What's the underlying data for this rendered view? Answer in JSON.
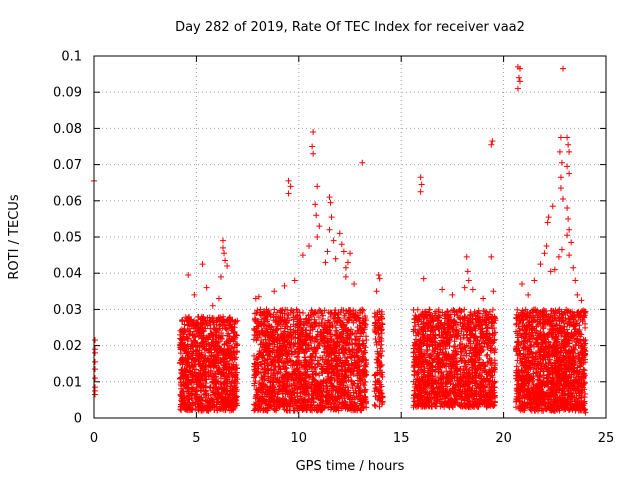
{
  "chart_data": {
    "type": "scatter",
    "title": "Day 282 of 2019, Rate Of TEC Index for receiver vaa2",
    "xlabel": "GPS time / hours",
    "ylabel": "ROTI / TECUs",
    "xlim": [
      0,
      25
    ],
    "ylim": [
      0,
      0.1
    ],
    "x_ticks": [
      0,
      5,
      10,
      15,
      20,
      25
    ],
    "y_ticks": [
      0,
      0.01,
      0.02,
      0.03,
      0.04,
      0.05,
      0.06,
      0.07,
      0.08,
      0.09,
      0.1
    ],
    "x_tick_labels": [
      "0",
      "5",
      "10",
      "15",
      "20",
      "25"
    ],
    "y_tick_labels": [
      "0",
      "0.01",
      "0.02",
      "0.03",
      "0.04",
      "0.05",
      "0.06",
      "0.07",
      "0.08",
      "0.09",
      "0.1"
    ],
    "grid": true,
    "marker": "+",
    "marker_color": "#ff0000",
    "dense_segments": [
      {
        "x": [
          4.2,
          7.0
        ],
        "y": [
          0.002,
          0.028
        ],
        "n": 1100
      },
      {
        "x": [
          7.8,
          13.3
        ],
        "y": [
          0.002,
          0.03
        ],
        "n": 2000
      },
      {
        "x": [
          13.7,
          14.1
        ],
        "y": [
          0.003,
          0.03
        ],
        "n": 120
      },
      {
        "x": [
          15.6,
          19.6
        ],
        "y": [
          0.003,
          0.03
        ],
        "n": 1500
      },
      {
        "x": [
          20.6,
          24.0
        ],
        "y": [
          0.002,
          0.03
        ],
        "n": 1500
      }
    ],
    "points": [
      {
        "x": 0.0,
        "y": 0.0655
      },
      {
        "x": 0.05,
        "y": 0.0215
      },
      {
        "x": 0.05,
        "y": 0.019
      },
      {
        "x": 0.05,
        "y": 0.018
      },
      {
        "x": 0.05,
        "y": 0.0155
      },
      {
        "x": 0.05,
        "y": 0.0135
      },
      {
        "x": 0.05,
        "y": 0.011
      },
      {
        "x": 0.05,
        "y": 0.0085
      },
      {
        "x": 0.05,
        "y": 0.0075
      },
      {
        "x": 0.05,
        "y": 0.0065
      },
      {
        "x": 4.6,
        "y": 0.0395
      },
      {
        "x": 4.9,
        "y": 0.034
      },
      {
        "x": 5.3,
        "y": 0.0425
      },
      {
        "x": 5.5,
        "y": 0.036
      },
      {
        "x": 6.3,
        "y": 0.049
      },
      {
        "x": 6.3,
        "y": 0.047
      },
      {
        "x": 6.35,
        "y": 0.0455
      },
      {
        "x": 6.4,
        "y": 0.0435
      },
      {
        "x": 6.2,
        "y": 0.039
      },
      {
        "x": 6.5,
        "y": 0.042
      },
      {
        "x": 6.1,
        "y": 0.033
      },
      {
        "x": 5.8,
        "y": 0.031
      },
      {
        "x": 7.9,
        "y": 0.033
      },
      {
        "x": 8.05,
        "y": 0.0335
      },
      {
        "x": 8.8,
        "y": 0.035
      },
      {
        "x": 9.5,
        "y": 0.0655
      },
      {
        "x": 9.6,
        "y": 0.064
      },
      {
        "x": 9.5,
        "y": 0.062
      },
      {
        "x": 9.3,
        "y": 0.0365
      },
      {
        "x": 9.8,
        "y": 0.038
      },
      {
        "x": 10.2,
        "y": 0.045
      },
      {
        "x": 10.5,
        "y": 0.0475
      },
      {
        "x": 10.7,
        "y": 0.079
      },
      {
        "x": 10.65,
        "y": 0.075
      },
      {
        "x": 10.7,
        "y": 0.073
      },
      {
        "x": 10.9,
        "y": 0.064
      },
      {
        "x": 10.8,
        "y": 0.059
      },
      {
        "x": 10.85,
        "y": 0.056
      },
      {
        "x": 11.0,
        "y": 0.053
      },
      {
        "x": 10.9,
        "y": 0.05
      },
      {
        "x": 11.3,
        "y": 0.043
      },
      {
        "x": 11.4,
        "y": 0.046
      },
      {
        "x": 11.5,
        "y": 0.061
      },
      {
        "x": 11.55,
        "y": 0.0595
      },
      {
        "x": 11.6,
        "y": 0.0555
      },
      {
        "x": 11.5,
        "y": 0.052
      },
      {
        "x": 11.7,
        "y": 0.049
      },
      {
        "x": 11.8,
        "y": 0.044
      },
      {
        "x": 12.0,
        "y": 0.051
      },
      {
        "x": 12.1,
        "y": 0.048
      },
      {
        "x": 12.2,
        "y": 0.046
      },
      {
        "x": 12.3,
        "y": 0.0415
      },
      {
        "x": 12.4,
        "y": 0.043
      },
      {
        "x": 12.5,
        "y": 0.0455
      },
      {
        "x": 12.7,
        "y": 0.037
      },
      {
        "x": 12.3,
        "y": 0.039
      },
      {
        "x": 13.1,
        "y": 0.0705
      },
      {
        "x": 13.9,
        "y": 0.0395
      },
      {
        "x": 13.95,
        "y": 0.0385
      },
      {
        "x": 13.8,
        "y": 0.035
      },
      {
        "x": 15.95,
        "y": 0.0665
      },
      {
        "x": 16.0,
        "y": 0.0645
      },
      {
        "x": 15.95,
        "y": 0.0625
      },
      {
        "x": 16.1,
        "y": 0.0385
      },
      {
        "x": 17.0,
        "y": 0.0355
      },
      {
        "x": 17.5,
        "y": 0.034
      },
      {
        "x": 18.2,
        "y": 0.0445
      },
      {
        "x": 18.25,
        "y": 0.0405
      },
      {
        "x": 18.3,
        "y": 0.038
      },
      {
        "x": 18.1,
        "y": 0.036
      },
      {
        "x": 18.5,
        "y": 0.0355
      },
      {
        "x": 19.0,
        "y": 0.033
      },
      {
        "x": 19.4,
        "y": 0.0445
      },
      {
        "x": 19.45,
        "y": 0.0765
      },
      {
        "x": 19.4,
        "y": 0.0755
      },
      {
        "x": 19.5,
        "y": 0.035
      },
      {
        "x": 20.7,
        "y": 0.097
      },
      {
        "x": 20.8,
        "y": 0.0965
      },
      {
        "x": 20.75,
        "y": 0.094
      },
      {
        "x": 20.8,
        "y": 0.093
      },
      {
        "x": 20.7,
        "y": 0.091
      },
      {
        "x": 20.9,
        "y": 0.037
      },
      {
        "x": 21.2,
        "y": 0.034
      },
      {
        "x": 21.5,
        "y": 0.038
      },
      {
        "x": 21.8,
        "y": 0.0425
      },
      {
        "x": 22.0,
        "y": 0.0455
      },
      {
        "x": 22.1,
        "y": 0.0475
      },
      {
        "x": 22.15,
        "y": 0.054
      },
      {
        "x": 22.2,
        "y": 0.0555
      },
      {
        "x": 22.4,
        "y": 0.0585
      },
      {
        "x": 22.3,
        "y": 0.0405
      },
      {
        "x": 22.5,
        "y": 0.041
      },
      {
        "x": 22.8,
        "y": 0.0775
      },
      {
        "x": 22.75,
        "y": 0.0735
      },
      {
        "x": 22.85,
        "y": 0.0705
      },
      {
        "x": 22.8,
        "y": 0.0665
      },
      {
        "x": 22.8,
        "y": 0.0635
      },
      {
        "x": 22.9,
        "y": 0.0605
      },
      {
        "x": 22.85,
        "y": 0.0465
      },
      {
        "x": 22.7,
        "y": 0.0445
      },
      {
        "x": 22.9,
        "y": 0.0965
      },
      {
        "x": 23.1,
        "y": 0.0775
      },
      {
        "x": 23.15,
        "y": 0.0755
      },
      {
        "x": 23.2,
        "y": 0.0735
      },
      {
        "x": 23.1,
        "y": 0.0695
      },
      {
        "x": 23.2,
        "y": 0.0675
      },
      {
        "x": 23.1,
        "y": 0.058
      },
      {
        "x": 23.15,
        "y": 0.055
      },
      {
        "x": 23.2,
        "y": 0.052
      },
      {
        "x": 23.1,
        "y": 0.0505
      },
      {
        "x": 23.3,
        "y": 0.0485
      },
      {
        "x": 23.2,
        "y": 0.045
      },
      {
        "x": 23.4,
        "y": 0.0415
      },
      {
        "x": 23.5,
        "y": 0.038
      },
      {
        "x": 23.6,
        "y": 0.034
      },
      {
        "x": 23.8,
        "y": 0.0325
      },
      {
        "x": 24.0,
        "y": 0.0015
      },
      {
        "x": 23.9,
        "y": 0.0035
      }
    ]
  }
}
